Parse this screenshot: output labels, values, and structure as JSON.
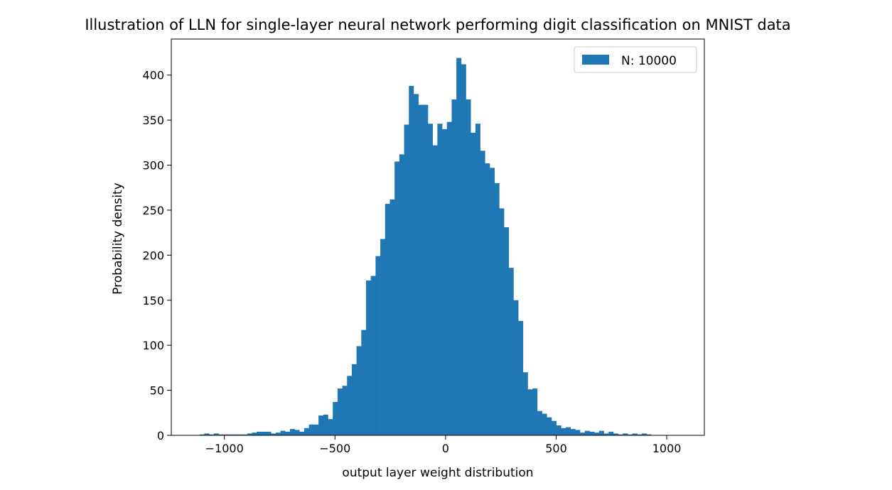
{
  "chart_data": {
    "type": "bar",
    "title": "Illustration of LLN for single-layer neural network performing digit classification on MNIST data",
    "xlabel": "output layer weight distribution",
    "ylabel": "Probability density",
    "xlim": [
      -1240,
      1170
    ],
    "ylim": [
      0,
      440
    ],
    "xticks": [
      -1000,
      -500,
      0,
      500,
      1000
    ],
    "xtick_labels": [
      "−1000",
      "−500",
      "0",
      "500",
      "1000"
    ],
    "yticks": [
      0,
      50,
      100,
      150,
      200,
      250,
      300,
      350,
      400
    ],
    "ytick_labels": [
      "0",
      "50",
      "100",
      "150",
      "200",
      "250",
      "300",
      "350",
      "400"
    ],
    "grid": false,
    "legend_position": "top-right",
    "series": [
      {
        "name": "N: 10000",
        "color": "#1f77b4",
        "bin_start": -1112,
        "bin_width": 21.5,
        "values": [
          1,
          2,
          1,
          2,
          1,
          1,
          1,
          1,
          1,
          1,
          2,
          3,
          4,
          4,
          4,
          2,
          3,
          5,
          4,
          7,
          6,
          4,
          8,
          12,
          12,
          22,
          23,
          18,
          37,
          52,
          55,
          66,
          79,
          99,
          117,
          172,
          177,
          199,
          218,
          257,
          262,
          304,
          312,
          345,
          388,
          379,
          367,
          367,
          346,
          322,
          346,
          340,
          348,
          373,
          419,
          412,
          373,
          336,
          346,
          316,
          302,
          297,
          280,
          252,
          231,
          186,
          150,
          127,
          70,
          51,
          52,
          27,
          24,
          20,
          16,
          11,
          8,
          9,
          7,
          6,
          3,
          5,
          4,
          3,
          5,
          2,
          4,
          2,
          1,
          2,
          1,
          2,
          1,
          2,
          1
        ]
      }
    ]
  }
}
